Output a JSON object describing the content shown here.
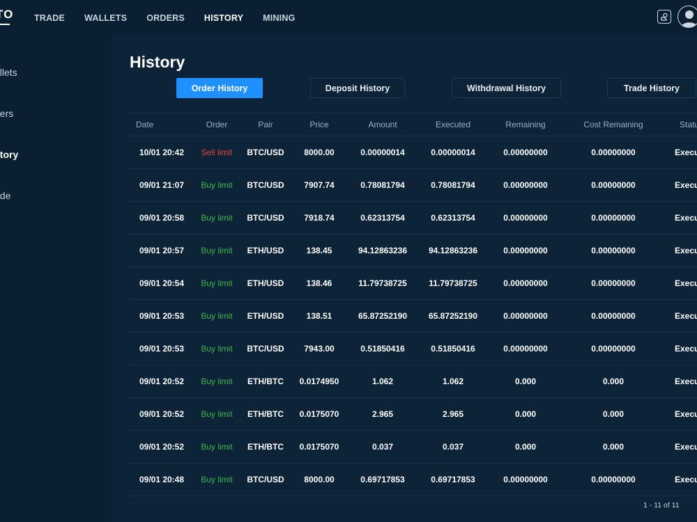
{
  "app": {
    "logo_text": "TO"
  },
  "nav": {
    "items": [
      {
        "label": "TRADE"
      },
      {
        "label": "WALLETS"
      },
      {
        "label": "ORDERS"
      },
      {
        "label": "HISTORY"
      },
      {
        "label": "MINING"
      }
    ],
    "active": "HISTORY"
  },
  "sidebar": {
    "items": [
      {
        "label": "allets"
      },
      {
        "label": "ders"
      },
      {
        "label": "story"
      },
      {
        "label": "ade"
      }
    ],
    "active": "story"
  },
  "page": {
    "title": "History"
  },
  "tabs": [
    {
      "label": "Order History"
    },
    {
      "label": "Deposit History"
    },
    {
      "label": "Withdrawal History"
    },
    {
      "label": "Trade History"
    }
  ],
  "table": {
    "columns": [
      "Date",
      "Order",
      "Pair",
      "Price",
      "Amount",
      "Executed",
      "Remaining",
      "Cost Remaining",
      "Statu"
    ],
    "rows": [
      {
        "date": "10/01 20:42",
        "order": "Sell limit",
        "side": "sell",
        "pair": "BTC/USD",
        "price": "8000.00",
        "amount": "0.00000014",
        "executed": "0.00000014",
        "remaining": "0.00000000",
        "cost_remaining": "0.00000000",
        "status": "Execu"
      },
      {
        "date": "09/01 21:07",
        "order": "Buy limit",
        "side": "buy",
        "pair": "BTC/USD",
        "price": "7907.74",
        "amount": "0.78081794",
        "executed": "0.78081794",
        "remaining": "0.00000000",
        "cost_remaining": "0.00000000",
        "status": "Execu"
      },
      {
        "date": "09/01 20:58",
        "order": "Buy limit",
        "side": "buy",
        "pair": "BTC/USD",
        "price": "7918.74",
        "amount": "0.62313754",
        "executed": "0.62313754",
        "remaining": "0.00000000",
        "cost_remaining": "0.00000000",
        "status": "Execu"
      },
      {
        "date": "09/01 20:57",
        "order": "Buy limit",
        "side": "buy",
        "pair": "ETH/USD",
        "price": "138.45",
        "amount": "94.12863236",
        "executed": "94.12863236",
        "remaining": "0.00000000",
        "cost_remaining": "0.00000000",
        "status": "Execu"
      },
      {
        "date": "09/01 20:54",
        "order": "Buy limit",
        "side": "buy",
        "pair": "ETH/USD",
        "price": "138.46",
        "amount": "11.79738725",
        "executed": "11.79738725",
        "remaining": "0.00000000",
        "cost_remaining": "0.00000000",
        "status": "Execu"
      },
      {
        "date": "09/01 20:53",
        "order": "Buy limit",
        "side": "buy",
        "pair": "ETH/USD",
        "price": "138.51",
        "amount": "65.87252190",
        "executed": "65.87252190",
        "remaining": "0.00000000",
        "cost_remaining": "0.00000000",
        "status": "Execu"
      },
      {
        "date": "09/01 20:53",
        "order": "Buy limit",
        "side": "buy",
        "pair": "BTC/USD",
        "price": "7943.00",
        "amount": "0.51850416",
        "executed": "0.51850416",
        "remaining": "0.00000000",
        "cost_remaining": "0.00000000",
        "status": "Execu"
      },
      {
        "date": "09/01 20:52",
        "order": "Buy limit",
        "side": "buy",
        "pair": "ETH/BTC",
        "price": "0.0174950",
        "amount": "1.062",
        "executed": "1.062",
        "remaining": "0.000",
        "cost_remaining": "0.000",
        "status": "Execu"
      },
      {
        "date": "09/01 20:52",
        "order": "Buy limit",
        "side": "buy",
        "pair": "ETH/BTC",
        "price": "0.0175070",
        "amount": "2.965",
        "executed": "2.965",
        "remaining": "0.000",
        "cost_remaining": "0.000",
        "status": "Execu"
      },
      {
        "date": "09/01 20:52",
        "order": "Buy limit",
        "side": "buy",
        "pair": "ETH/BTC",
        "price": "0.0175070",
        "amount": "0.037",
        "executed": "0.037",
        "remaining": "0.000",
        "cost_remaining": "0.000",
        "status": "Execu"
      },
      {
        "date": "09/01 20:48",
        "order": "Buy limit",
        "side": "buy",
        "pair": "BTC/USD",
        "price": "8000.00",
        "amount": "0.69717853",
        "executed": "0.69717853",
        "remaining": "0.00000000",
        "cost_remaining": "0.00000000",
        "status": "Execu"
      }
    ]
  },
  "pagination": {
    "label": "1 - 11 of 11"
  },
  "colors": {
    "background": "#0d2338",
    "panel": "#0b1f33",
    "accent": "#1e90ff",
    "sell": "#e8433b",
    "buy": "#3fb54a"
  },
  "icons": {
    "notification": "chat-card-icon",
    "user": "user-avatar-icon"
  }
}
